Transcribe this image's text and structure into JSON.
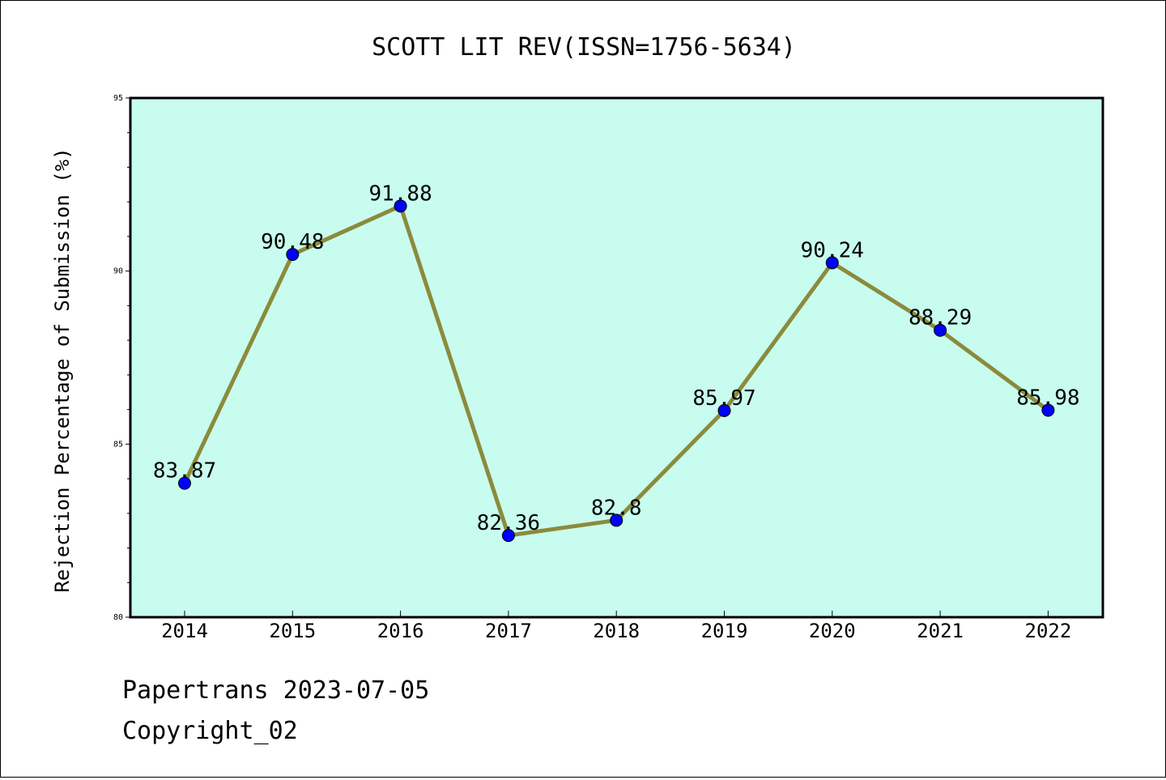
{
  "chart_data": {
    "type": "line",
    "title": "SCOTT LIT REV(ISSN=1756-5634)",
    "xlabel": "",
    "ylabel": "Rejection Percentage of Submission (%)",
    "categories": [
      "2014",
      "2015",
      "2016",
      "2017",
      "2018",
      "2019",
      "2020",
      "2021",
      "2022"
    ],
    "values": [
      83.87,
      90.48,
      91.88,
      82.36,
      82.8,
      85.97,
      90.24,
      88.29,
      85.98
    ],
    "data_labels": [
      "83.87",
      "90.48",
      "91.88",
      "82.36",
      "82.8",
      "85.97",
      "90.24",
      "88.29",
      "85.98"
    ],
    "ylim": [
      80,
      95
    ],
    "yticks": [
      80,
      85,
      90,
      95
    ],
    "grid": false,
    "legend": "none",
    "colors": {
      "plot_background": "#c8fcef",
      "line": "#8b8b3c",
      "marker": "#0000ff"
    }
  },
  "footer": {
    "line1": "Papertrans 2023-07-05",
    "line2": "Copyright_02"
  }
}
